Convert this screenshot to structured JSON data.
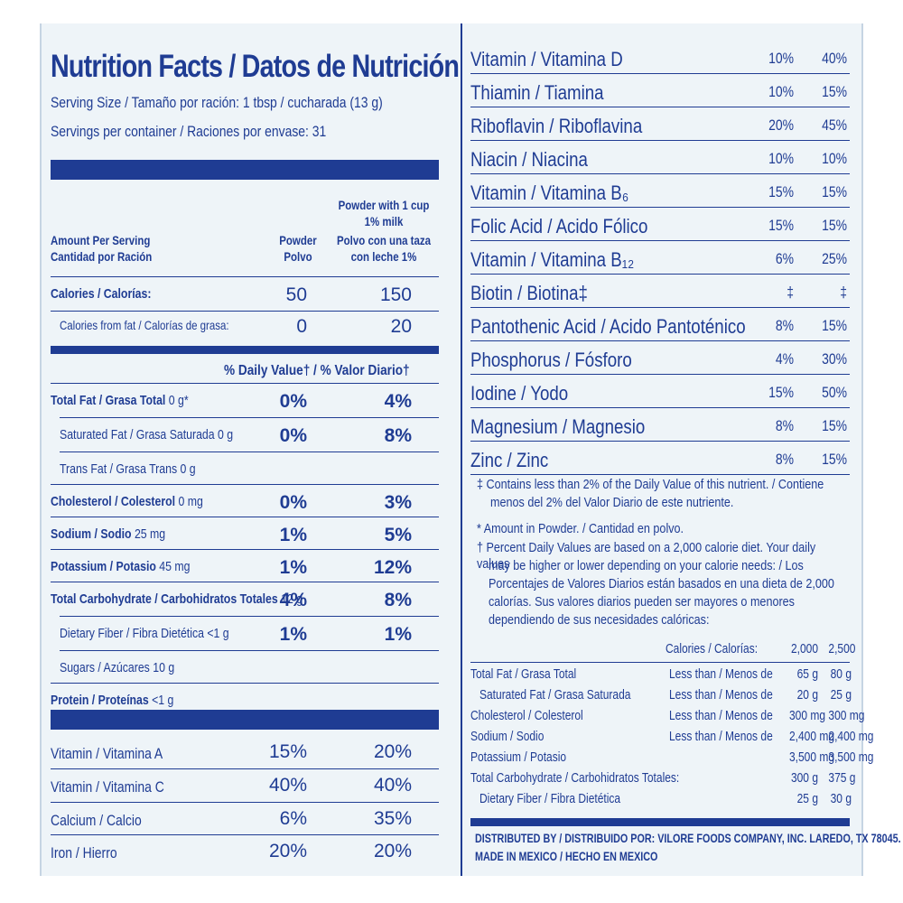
{
  "title": "Nutrition Facts / Datos de Nutrición",
  "serving_size": "Serving Size / Tamaño por ración: 1 tbsp / cucharada (13 g)",
  "servings_per_container": "Servings per container / Raciones por envase: 31",
  "header": {
    "amount_per_serving": "Amount Per Serving",
    "cantidad": "Cantidad por Ración",
    "col1_a": "Powder",
    "col1_b": "Polvo",
    "col2_a": "Powder with 1 cup",
    "col2_b": "1% milk",
    "col2_c": "Polvo con una taza",
    "col2_d": "con leche 1%"
  },
  "calories": {
    "label": "Calories / Calorías:",
    "c1": "50",
    "c2": "150"
  },
  "calories_fat": {
    "label": "Calories from fat / Calorías de grasa:",
    "c1": "0",
    "c2": "20"
  },
  "dv_header": "% Daily Value† / % Valor Diario†",
  "nutrients": [
    {
      "bold": "Total Fat / Grasa Total",
      "rest": " 0 g*",
      "c1": "0%",
      "c2": "4%"
    },
    {
      "bold": "",
      "rest": "Saturated Fat / Grasa Saturada 0 g",
      "c1": "0%",
      "c2": "8%"
    },
    {
      "bold": "",
      "rest": "Trans Fat / Grasa Trans 0 g",
      "c1": "",
      "c2": ""
    },
    {
      "bold": "Cholesterol / Colesterol",
      "rest": " 0 mg",
      "c1": "0%",
      "c2": "3%"
    },
    {
      "bold": "Sodium / Sodio",
      "rest": " 25 mg",
      "c1": "1%",
      "c2": "5%"
    },
    {
      "bold": "Potassium / Potasio",
      "rest": " 45 mg",
      "c1": "1%",
      "c2": "12%"
    },
    {
      "bold": "Total Carbohydrate / Carbohidratos Totales",
      "rest": " 12 g",
      "c1": "4%",
      "c2": "8%"
    },
    {
      "bold": "",
      "rest": "Dietary Fiber / Fibra Dietética <1 g",
      "c1": "1%",
      "c2": "1%"
    },
    {
      "bold": "",
      "rest": "Sugars / Azúcares 10 g",
      "c1": "",
      "c2": ""
    },
    {
      "bold": "Protein / Proteínas",
      "rest": " <1 g",
      "c1": "",
      "c2": ""
    }
  ],
  "vitamins_left": [
    {
      "name": "Vitamin / Vitamina A",
      "c1": "15%",
      "c2": "20%"
    },
    {
      "name": "Vitamin / Vitamina C",
      "c1": "40%",
      "c2": "40%"
    },
    {
      "name": "Calcium / Calcio",
      "c1": "6%",
      "c2": "35%"
    },
    {
      "name": "Iron / Hierro",
      "c1": "20%",
      "c2": "20%"
    }
  ],
  "vitamins_right": [
    {
      "name": "Vitamin / Vitamina D",
      "c1": "10%",
      "c2": "40%"
    },
    {
      "name": "Thiamin / Tiamina",
      "c1": "10%",
      "c2": "15%"
    },
    {
      "name": "Riboflavin / Riboflavina",
      "c1": "20%",
      "c2": "45%"
    },
    {
      "name": "Niacin / Niacina",
      "c1": "10%",
      "c2": "10%"
    },
    {
      "name": "Vitamin / Vitamina B₆",
      "c1": "15%",
      "c2": "15%"
    },
    {
      "name": "Folic Acid / Acido Fólico",
      "c1": "15%",
      "c2": "15%"
    },
    {
      "name": "Vitamin / Vitamina B₁₂",
      "c1": "6%",
      "c2": "25%"
    },
    {
      "name": "Biotin / Biotina‡",
      "c1": "‡",
      "c2": "‡"
    },
    {
      "name": "Pantothenic Acid / Acido Pantoténico",
      "c1": "8%",
      "c2": "15%"
    },
    {
      "name": "Phosphorus / Fósforo",
      "c1": "4%",
      "c2": "30%"
    },
    {
      "name": "Iodine / Yodo",
      "c1": "15%",
      "c2": "50%"
    },
    {
      "name": "Magnesium / Magnesio",
      "c1": "8%",
      "c2": "15%"
    },
    {
      "name": "Zinc / Zinc",
      "c1": "8%",
      "c2": "15%"
    }
  ],
  "footnotes": {
    "f1a": "‡ Contains less than 2% of the Daily Value of this nutrient. / Contiene",
    "f1b": "menos del 2% del Valor Diario de este nutriente.",
    "f2": "* Amount in Powder. / Cantidad en polvo.",
    "f3a": "† Percent Daily Values are based on a 2,000 calorie diet. Your daily values",
    "f3b": "may be higher or lower depending on your calorie needs: / Los",
    "f3c": "Porcentajes de Valores Diarios están basados en una dieta de 2,000",
    "f3d": "calorías. Sus valores diarios pueden ser mayores o menores",
    "f3e": "dependiendo de sus necesidades calóricas:"
  },
  "dv_table": {
    "header_label": "Calories / Calorías:",
    "h1": "2,000",
    "h2": "2,500",
    "rows": [
      {
        "n": "Total Fat / Grasa Total",
        "l": "Less than / Menos de",
        "a": "65 g",
        "b": "80 g"
      },
      {
        "n": "   Saturated Fat / Grasa Saturada",
        "l": "Less than / Menos de",
        "a": "20 g",
        "b": "25 g"
      },
      {
        "n": "Cholesterol / Colesterol",
        "l": "Less than / Menos de",
        "a": "300 mg",
        "b": "300 mg"
      },
      {
        "n": "Sodium / Sodio",
        "l": "Less than / Menos de",
        "a": "2,400 mg",
        "b": "2,400 mg"
      },
      {
        "n": "Potassium / Potasio",
        "l": "",
        "a": "3,500 mg",
        "b": "3,500 mg"
      },
      {
        "n": "Total Carbohydrate / Carbohidratos Totales:",
        "l": "",
        "a": "300 g",
        "b": "375 g"
      },
      {
        "n": "   Dietary Fiber / Fibra Dietética",
        "l": "",
        "a": "25 g",
        "b": "30 g"
      }
    ]
  },
  "distributed": "DISTRIBUTED BY / DISTRIBUIDO POR: VILORE FOODS COMPANY, INC. LAREDO, TX 78045.",
  "made_in": "MADE IN MEXICO / HECHO EN MEXICO",
  "colors": {
    "ink": "#1f3c93",
    "background": "#eef4f8"
  }
}
